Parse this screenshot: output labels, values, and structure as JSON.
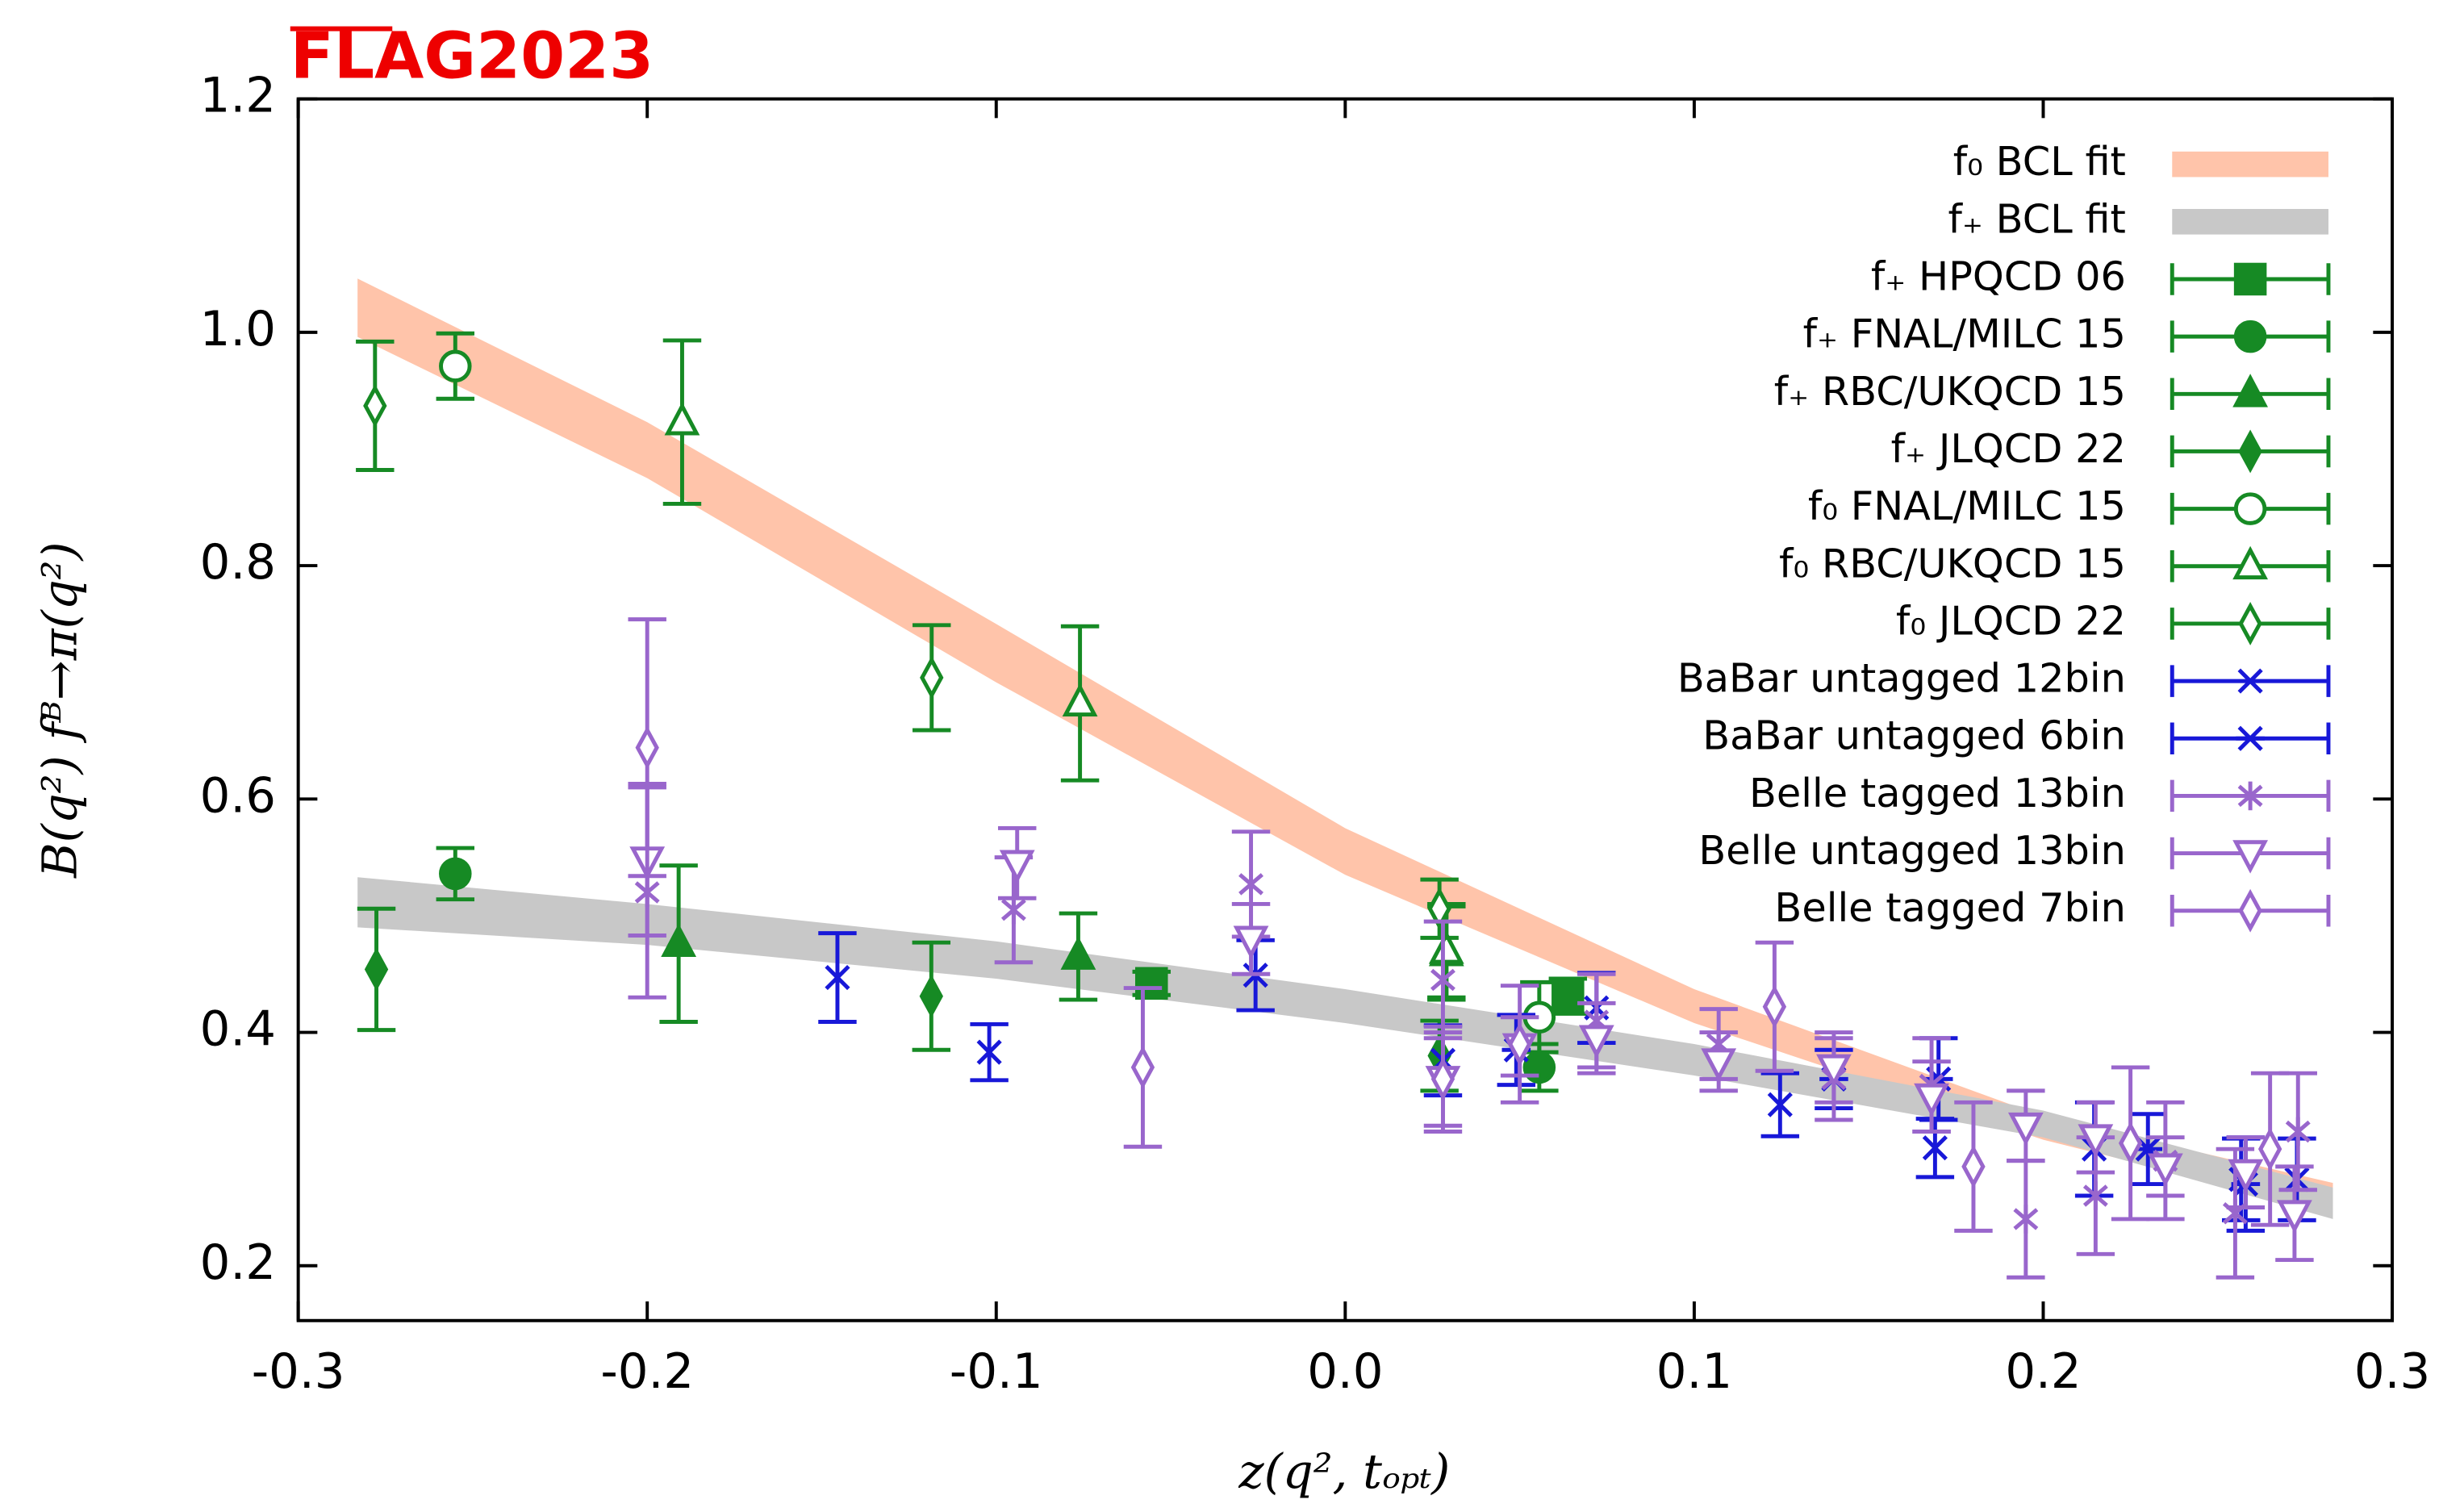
{
  "chart_data": {
    "type": "scatter",
    "title": "FLAG2023",
    "x_label": "z(q², tₒₚₜ)",
    "y_label": "B(q²) fᴮ→π(q²)",
    "xlim": [
      -0.3,
      0.3
    ],
    "ylim": [
      0.153,
      1.2
    ],
    "xticks": [
      -0.3,
      -0.2,
      -0.1,
      {
        "value": 0,
        "label": "0.0"
      },
      0.1,
      0.2,
      0.3
    ],
    "yticks": [
      0.2,
      0.4,
      0.6,
      0.8,
      {
        "value": 1,
        "label": "1.0"
      },
      1.2
    ],
    "legend": "upper right",
    "bands": [
      {
        "name": "f₀ BCL fit",
        "color": "#ffc4aa",
        "x": [
          -0.283,
          -0.2,
          -0.1,
          0,
          0.1,
          0.2,
          0.283
        ],
        "lower": [
          0.996,
          0.875,
          0.7,
          0.535,
          0.408,
          0.308,
          0.246
        ],
        "upper": [
          1.046,
          0.923,
          0.75,
          0.575,
          0.437,
          0.328,
          0.271
        ]
      },
      {
        "name": "f₊ BCL fit",
        "color": "#c8c8c8",
        "x": [
          -0.283,
          -0.2,
          -0.1,
          0,
          0.1,
          0.2,
          0.283
        ],
        "lower": [
          0.49,
          0.475,
          0.446,
          0.408,
          0.363,
          0.31,
          0.24
        ],
        "upper": [
          0.533,
          0.51,
          0.478,
          0.437,
          0.39,
          0.333,
          0.267
        ]
      }
    ],
    "series": [
      {
        "name": "f₊ HPQCD 06",
        "color": "#168a24",
        "marker": "square",
        "filled": true,
        "x": [
          -0.0555,
          0.0638
        ],
        "values": [
          0.442,
          0.431
        ],
        "errors": [
          0.01,
          0.015
        ]
      },
      {
        "name": "f₊ FNAL/MILC 15",
        "color": "#168a24",
        "marker": "circle",
        "filled": true,
        "x": [
          -0.255,
          0.0556
        ],
        "values": [
          0.536,
          0.37
        ],
        "errors": [
          0.022,
          0.02
        ]
      },
      {
        "name": "f₊ RBC/UKQCD 15",
        "color": "#168a24",
        "marker": "triangle-up",
        "filled": true,
        "x": [
          -0.191,
          -0.0765,
          0.029
        ],
        "values": [
          0.476,
          0.465,
          0.468
        ],
        "errors": [
          0.067,
          0.037,
          0.04
        ]
      },
      {
        "name": "f₊ JLQCD 22",
        "color": "#168a24",
        "marker": "diamond",
        "filled": true,
        "x": [
          -0.2776,
          -0.1186,
          0.027
        ],
        "values": [
          0.454,
          0.431,
          0.38
        ],
        "errors": [
          0.052,
          0.046,
          0.03
        ]
      },
      {
        "name": "f₀ FNAL/MILC 15",
        "color": "#168a24",
        "marker": "circle",
        "filled": false,
        "x": [
          -0.255,
          0.0556
        ],
        "values": [
          0.971,
          0.413
        ],
        "errors": [
          0.028,
          0.03
        ]
      },
      {
        "name": "f₀ RBC/UKQCD 15",
        "color": "#168a24",
        "marker": "triangle-up",
        "filled": false,
        "x": [
          -0.19,
          -0.076,
          0.029
        ],
        "values": [
          0.923,
          0.682,
          0.47
        ],
        "errors": [
          0.07,
          0.066,
          0.04
        ]
      },
      {
        "name": "f₀ JLQCD 22",
        "color": "#168a24",
        "marker": "diamond",
        "filled": false,
        "x": [
          -0.278,
          -0.1185,
          0.027
        ],
        "values": [
          0.937,
          0.704,
          0.506
        ],
        "errors": [
          0.055,
          0.045,
          0.025
        ]
      },
      {
        "name": "BaBar untagged 12bin",
        "color": "#1818d8",
        "marker": "cross",
        "filled": false,
        "x": [
          -0.1455,
          -0.102,
          -0.0257,
          0.028,
          0.072,
          0.1246,
          0.169,
          0.2146,
          0.2567,
          0.2727
        ],
        "values": [
          0.447,
          0.383,
          0.449,
          0.376,
          0.421,
          0.338,
          0.301,
          0.3,
          0.274,
          0.274
        ],
        "errors": [
          0.038,
          0.024,
          0.03,
          0.03,
          0.03,
          0.027,
          0.025,
          0.04,
          0.035,
          0.035
        ]
      },
      {
        "name": "BaBar untagged 6bin",
        "color": "#1818d8",
        "marker": "cross-bar",
        "filled": false,
        "x": [
          0.049,
          0.14,
          0.17,
          0.23,
          0.258
        ],
        "values": [
          0.385,
          0.36,
          0.36,
          0.3,
          0.27
        ],
        "errors": [
          0.03,
          0.025,
          0.035,
          0.03,
          0.04
        ]
      },
      {
        "name": "Belle tagged 13bin",
        "color": "#9966cc",
        "marker": "star",
        "filled": false,
        "x": [
          -0.2,
          -0.095,
          -0.027,
          0.028,
          0.072,
          0.107,
          0.14,
          0.168,
          0.195,
          0.215,
          0.235,
          0.255,
          0.273
        ],
        "values": [
          0.52,
          0.505,
          0.527,
          0.445,
          0.41,
          0.39,
          0.36,
          0.355,
          0.24,
          0.26,
          0.29,
          0.245,
          0.315
        ],
        "errors": [
          0.09,
          0.045,
          0.045,
          0.05,
          0.04,
          0.03,
          0.035,
          0.04,
          0.05,
          0.05,
          0.05,
          0.055,
          0.05
        ]
      },
      {
        "name": "Belle untagged 13bin",
        "color": "#9966cc",
        "marker": "triangle-down",
        "filled": false,
        "x": [
          -0.2,
          -0.094,
          -0.027,
          0.028,
          0.05,
          0.072,
          0.107,
          0.14,
          0.168,
          0.195,
          0.215,
          0.235,
          0.258,
          0.272
        ],
        "values": [
          0.548,
          0.545,
          0.48,
          0.36,
          0.388,
          0.395,
          0.375,
          0.37,
          0.345,
          0.32,
          0.31,
          0.285,
          0.28,
          0.245
        ],
        "errors": [
          0.065,
          0.03,
          0.03,
          0.04,
          0.025,
          0.03,
          0.025,
          0.03,
          0.03,
          0.03,
          0.03,
          0.025,
          0.03,
          0.04
        ]
      },
      {
        "name": "Belle tagged 7bin",
        "color": "#9966cc",
        "marker": "diamond",
        "filled": false,
        "x": [
          -0.2,
          -0.058,
          0.028,
          0.05,
          0.123,
          0.18,
          0.225,
          0.265
        ],
        "values": [
          0.644,
          0.37,
          0.36,
          0.39,
          0.422,
          0.285,
          0.305,
          0.3
        ],
        "errors": [
          0.11,
          0.068,
          0.045,
          0.05,
          0.055,
          0.055,
          0.065,
          0.065
        ]
      }
    ]
  }
}
